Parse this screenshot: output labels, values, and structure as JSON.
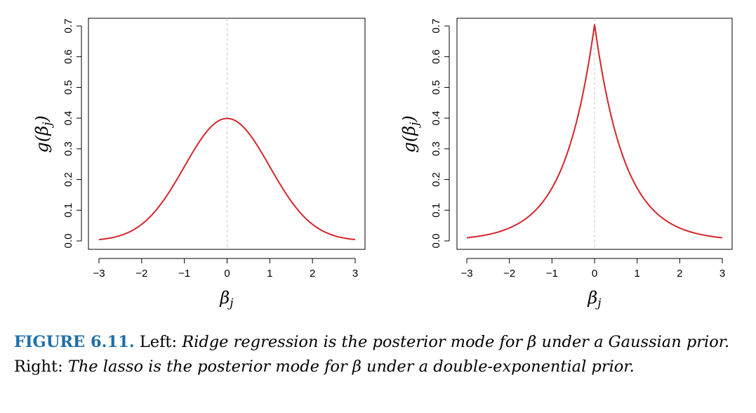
{
  "chart_data": [
    {
      "type": "line",
      "panel": "left",
      "ylabel": "g(βj)",
      "xlabel": "βj",
      "xlim": [
        -3,
        3
      ],
      "ylim": [
        0,
        0.7
      ],
      "xticks": [
        "−3",
        "−2",
        "−1",
        "0",
        "1",
        "2",
        "3"
      ],
      "yticks": [
        "0.0",
        "0.1",
        "0.2",
        "0.3",
        "0.4",
        "0.5",
        "0.6",
        "0.7"
      ],
      "grid": false,
      "reference_line_x": 0,
      "line_color": "#d4262b",
      "series": [
        {
          "x": [
            -3,
            -2.5,
            -2,
            -1.5,
            -1,
            -0.5,
            0,
            0.5,
            1,
            1.5,
            2,
            2.5,
            3
          ],
          "y": [
            0.004,
            0.018,
            0.054,
            0.13,
            0.242,
            0.352,
            0.399,
            0.352,
            0.242,
            0.13,
            0.054,
            0.018,
            0.004
          ]
        }
      ]
    },
    {
      "type": "line",
      "panel": "right",
      "ylabel": "g(βj)",
      "xlabel": "βj",
      "xlim": [
        -3,
        3
      ],
      "ylim": [
        0,
        0.7
      ],
      "xticks": [
        "−3",
        "−2",
        "−1",
        "0",
        "1",
        "2",
        "3"
      ],
      "yticks": [
        "0.0",
        "0.1",
        "0.2",
        "0.3",
        "0.4",
        "0.5",
        "0.6",
        "0.7"
      ],
      "grid": false,
      "reference_line_x": 0,
      "line_color": "#d4262b",
      "series": [
        {
          "x": [
            -3,
            -2.5,
            -2,
            -1.5,
            -1,
            -0.5,
            0,
            0.5,
            1,
            1.5,
            2,
            2.5,
            3
          ],
          "y": [
            0.01,
            0.021,
            0.042,
            0.087,
            0.172,
            0.348,
            0.705,
            0.348,
            0.172,
            0.087,
            0.042,
            0.021,
            0.01
          ]
        }
      ]
    }
  ],
  "caption": {
    "label": "FIGURE 6.11.",
    "left_prefix": "Left:",
    "left_text": "Ridge regression is the posterior mode for β under a Gaussian prior.",
    "right_prefix": "Right:",
    "right_text": "The lasso is the posterior mode for β under a double-exponential prior."
  }
}
